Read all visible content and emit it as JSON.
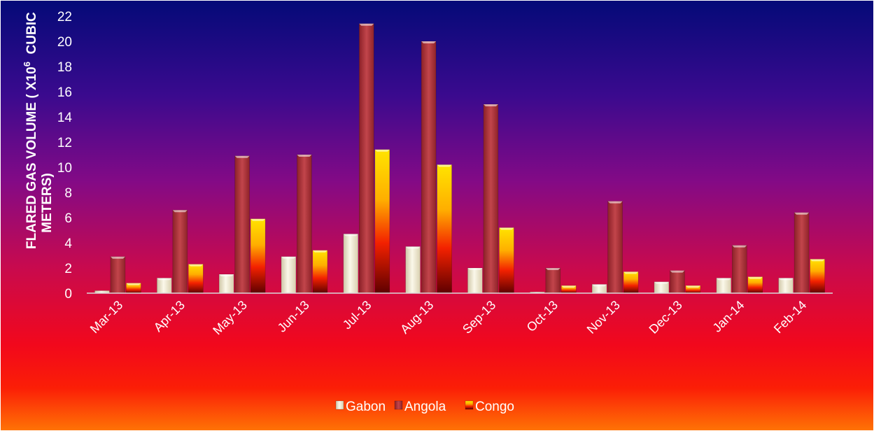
{
  "chart_data": {
    "type": "bar",
    "title": "",
    "xlabel": "",
    "ylabel": {
      "line1": "FLARED GAS VOLUME ( X10",
      "superscript": "6",
      "line1_end": "  CUBIC",
      "line2": "METERS)"
    },
    "ylim": [
      0,
      22
    ],
    "yticks": [
      "0",
      "2",
      "4",
      "6",
      "8",
      "10",
      "12",
      "14",
      "16",
      "18",
      "20",
      "22"
    ],
    "grid": false,
    "legend_position": "bottom",
    "categories": [
      "Mar-13",
      "Apr-13",
      "May-13",
      "Jun-13",
      "Jul-13",
      "Aug-13",
      "Sep-13",
      "Oct-13",
      "Nov-13",
      "Dec-13",
      "Jan-14",
      "Feb-14"
    ],
    "series": [
      {
        "name": "Gabon",
        "color": "#efe9d2",
        "values": [
          0.2,
          1.2,
          1.5,
          2.9,
          4.7,
          3.7,
          2.0,
          0.1,
          0.7,
          0.9,
          1.2,
          1.2
        ]
      },
      {
        "name": "Angola",
        "color": "#b5383f",
        "values": [
          2.9,
          6.6,
          10.9,
          11.0,
          21.4,
          20.0,
          15.0,
          2.0,
          7.3,
          1.8,
          3.8,
          6.4
        ]
      },
      {
        "name": "Congo",
        "color": "#ffd400",
        "values": [
          0.8,
          2.3,
          5.9,
          3.4,
          11.4,
          10.2,
          5.2,
          0.6,
          1.7,
          0.6,
          1.3,
          2.7
        ]
      }
    ]
  }
}
